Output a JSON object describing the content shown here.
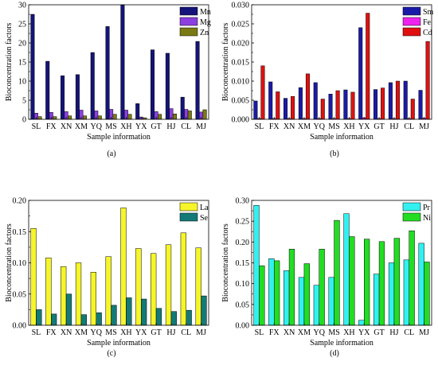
{
  "chart_data": [
    {
      "type": "bar",
      "panel_label": "(a)",
      "xlabel": "Sample information",
      "ylabel": "Bioconcentration factors",
      "ylim": [
        0,
        30
      ],
      "yticks": [
        "0",
        "5",
        "10",
        "15",
        "20",
        "25",
        "30"
      ],
      "categories": [
        "SL",
        "FX",
        "XN",
        "XM",
        "YQ",
        "MS",
        "XH",
        "YX",
        "GT",
        "HJ",
        "CL",
        "MJ"
      ],
      "legend": "top-right",
      "series": [
        {
          "name": "Mn",
          "color": "#14147a",
          "values": [
            27.5,
            15.2,
            11.4,
            11.7,
            17.5,
            24.3,
            30.0,
            4.1,
            18.2,
            17.3,
            5.8,
            20.4
          ]
        },
        {
          "name": "Mg",
          "color": "#8c3fe0",
          "values": [
            1.6,
            1.8,
            2.0,
            2.4,
            2.2,
            2.6,
            2.4,
            0.6,
            2.0,
            2.8,
            2.6,
            1.9
          ]
        },
        {
          "name": "Zn",
          "color": "#7a7a12",
          "values": [
            0.7,
            0.7,
            0.9,
            0.9,
            0.9,
            1.3,
            1.3,
            0.4,
            1.3,
            1.4,
            2.2,
            2.5
          ]
        }
      ]
    },
    {
      "type": "bar",
      "panel_label": "(b)",
      "xlabel": "Sample information",
      "ylabel": "Bioconcentration factors",
      "ylim": [
        0,
        0.03
      ],
      "yticks": [
        "0.000",
        "0.005",
        "0.010",
        "0.015",
        "0.020",
        "0.025",
        "0.030"
      ],
      "categories": [
        "SL",
        "FX",
        "XN",
        "XM",
        "YQ",
        "MS",
        "XH",
        "YX",
        "GT",
        "HJ",
        "CL",
        "MJ"
      ],
      "legend": "top-right",
      "series": [
        {
          "name": "Sm",
          "color": "#1a1aa8",
          "values": [
            0.0048,
            0.0098,
            0.0055,
            0.0083,
            0.0096,
            0.0066,
            0.0077,
            0.024,
            0.0078,
            0.0096,
            0.01,
            0.0076
          ]
        },
        {
          "name": "Fe",
          "color": "#ee22ee",
          "values": [
            0.0002,
            0.0002,
            0.0002,
            0.0002,
            0.0002,
            0.0002,
            0.0002,
            0.0004,
            0.0002,
            0.0002,
            0.0002,
            0.0003
          ]
        },
        {
          "name": "Cd",
          "color": "#e01010",
          "values": [
            0.014,
            0.0072,
            0.006,
            0.0119,
            0.0053,
            0.0075,
            0.0071,
            0.0278,
            0.0082,
            0.01,
            0.0053,
            0.0204
          ]
        }
      ]
    },
    {
      "type": "bar",
      "panel_label": "(c)",
      "xlabel": "Sample information",
      "ylabel": "Bioconcentration factors",
      "ylim": [
        0,
        0.2
      ],
      "yticks": [
        "0.00",
        "0.05",
        "0.10",
        "0.15",
        "0.20"
      ],
      "categories": [
        "SL",
        "FX",
        "XN",
        "XM",
        "YQ",
        "MS",
        "XH",
        "YX",
        "GT",
        "HJ",
        "CL",
        "MJ"
      ],
      "legend": "top-right",
      "series": [
        {
          "name": "La",
          "color": "#f5f52a",
          "values": [
            0.155,
            0.108,
            0.094,
            0.1,
            0.085,
            0.11,
            0.188,
            0.123,
            0.115,
            0.129,
            0.148,
            0.124
          ]
        },
        {
          "name": "Se",
          "color": "#137a78",
          "values": [
            0.025,
            0.018,
            0.05,
            0.017,
            0.02,
            0.032,
            0.044,
            0.042,
            0.027,
            0.022,
            0.024,
            0.047
          ]
        }
      ]
    },
    {
      "type": "bar",
      "panel_label": "(d)",
      "xlabel": "Sample information",
      "ylabel": "Bioconcentration factors",
      "ylim": [
        0,
        0.3
      ],
      "yticks": [
        "0.00",
        "0.05",
        "0.10",
        "0.15",
        "0.20",
        "0.25",
        "0.30"
      ],
      "categories": [
        "SL",
        "FX",
        "XN",
        "XM",
        "YQ",
        "MS",
        "XH",
        "YX",
        "GT",
        "HJ",
        "CL",
        "MJ"
      ],
      "legend": "top-right",
      "series": [
        {
          "name": "Pr",
          "color": "#33f0f0",
          "values": [
            0.288,
            0.16,
            0.131,
            0.115,
            0.096,
            0.115,
            0.268,
            0.012,
            0.123,
            0.15,
            0.157,
            0.197
          ]
        },
        {
          "name": "Ni",
          "color": "#22dd22",
          "values": [
            0.143,
            0.155,
            0.183,
            0.148,
            0.183,
            0.252,
            0.213,
            0.207,
            0.201,
            0.209,
            0.227,
            0.152
          ]
        }
      ]
    }
  ]
}
